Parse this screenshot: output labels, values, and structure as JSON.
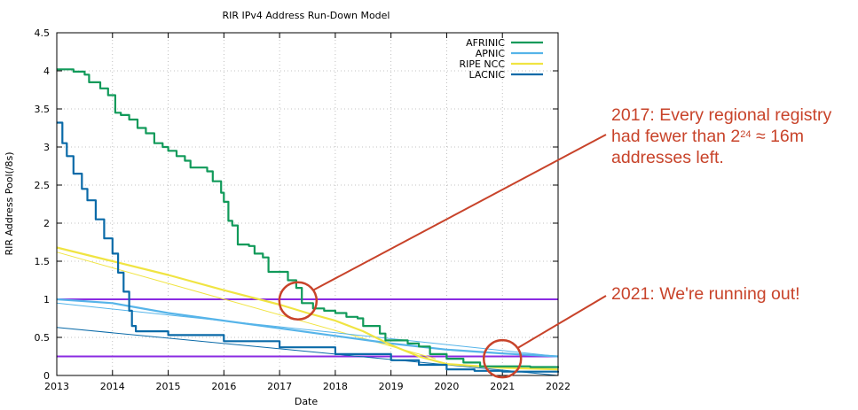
{
  "chart_data": {
    "type": "line",
    "title": "RIR IPv4 Address Run-Down Model",
    "xlabel": "Date",
    "ylabel": "RIR Address Pool(/8s)",
    "xlim": [
      2013,
      2022
    ],
    "ylim": [
      0,
      4.5
    ],
    "xticks": [
      "2013",
      "2014",
      "2015",
      "2016",
      "2017",
      "2018",
      "2019",
      "2020",
      "2021",
      "2022"
    ],
    "yticks": [
      "0",
      "0.5",
      "1",
      "1.5",
      "2",
      "2.5",
      "3",
      "3.5",
      "4",
      "4.5"
    ],
    "grid": true,
    "legend_position": "top-right",
    "series": [
      {
        "name": "AFRINIC",
        "color": "#119a5a",
        "points": [
          [
            2013,
            4.02
          ],
          [
            2013.3,
            3.99
          ],
          [
            2013.5,
            3.95
          ],
          [
            2013.58,
            3.85
          ],
          [
            2013.78,
            3.77
          ],
          [
            2013.92,
            3.68
          ],
          [
            2014.05,
            3.45
          ],
          [
            2014.15,
            3.42
          ],
          [
            2014.3,
            3.36
          ],
          [
            2014.45,
            3.25
          ],
          [
            2014.6,
            3.18
          ],
          [
            2014.75,
            3.05
          ],
          [
            2014.9,
            3.0
          ],
          [
            2015.0,
            2.95
          ],
          [
            2015.15,
            2.88
          ],
          [
            2015.3,
            2.82
          ],
          [
            2015.4,
            2.73
          ],
          [
            2015.7,
            2.68
          ],
          [
            2015.8,
            2.55
          ],
          [
            2015.95,
            2.4
          ],
          [
            2016.0,
            2.28
          ],
          [
            2016.08,
            2.03
          ],
          [
            2016.15,
            1.97
          ],
          [
            2016.25,
            1.72
          ],
          [
            2016.45,
            1.7
          ],
          [
            2016.55,
            1.6
          ],
          [
            2016.7,
            1.55
          ],
          [
            2016.8,
            1.36
          ],
          [
            2017.15,
            1.25
          ],
          [
            2017.3,
            1.15
          ],
          [
            2017.4,
            0.95
          ],
          [
            2017.6,
            0.88
          ],
          [
            2017.8,
            0.85
          ],
          [
            2018.0,
            0.82
          ],
          [
            2018.2,
            0.77
          ],
          [
            2018.4,
            0.75
          ],
          [
            2018.5,
            0.65
          ],
          [
            2018.8,
            0.55
          ],
          [
            2018.9,
            0.46
          ],
          [
            2019.3,
            0.42
          ],
          [
            2019.5,
            0.38
          ],
          [
            2019.7,
            0.28
          ],
          [
            2020.0,
            0.22
          ],
          [
            2020.3,
            0.17
          ],
          [
            2020.6,
            0.12
          ],
          [
            2021.0,
            0.12
          ],
          [
            2021.5,
            0.11
          ],
          [
            2022,
            0.1
          ]
        ]
      },
      {
        "name": "APNIC",
        "color": "#56b4e9",
        "points": [
          [
            2013,
            1.0
          ],
          [
            2014,
            0.95
          ],
          [
            2015,
            0.82
          ],
          [
            2016,
            0.72
          ],
          [
            2017,
            0.62
          ],
          [
            2018,
            0.52
          ],
          [
            2019,
            0.42
          ],
          [
            2020,
            0.34
          ],
          [
            2021,
            0.29
          ],
          [
            2022,
            0.25
          ]
        ]
      },
      {
        "name": "RIPE NCC",
        "color": "#f0e442",
        "points": [
          [
            2013,
            1.68
          ],
          [
            2014,
            1.5
          ],
          [
            2015,
            1.32
          ],
          [
            2016,
            1.12
          ],
          [
            2017,
            0.93
          ],
          [
            2017.5,
            0.82
          ],
          [
            2018,
            0.72
          ],
          [
            2018.5,
            0.58
          ],
          [
            2019,
            0.4
          ],
          [
            2019.5,
            0.25
          ],
          [
            2020,
            0.15
          ],
          [
            2021,
            0.1
          ],
          [
            2022,
            0.08
          ]
        ]
      },
      {
        "name": "LACNIC",
        "color": "#0a6aa8",
        "points": [
          [
            2013,
            3.32
          ],
          [
            2013.1,
            3.05
          ],
          [
            2013.18,
            2.88
          ],
          [
            2013.3,
            2.65
          ],
          [
            2013.45,
            2.45
          ],
          [
            2013.55,
            2.3
          ],
          [
            2013.7,
            2.05
          ],
          [
            2013.85,
            1.8
          ],
          [
            2014.0,
            1.6
          ],
          [
            2014.1,
            1.35
          ],
          [
            2014.2,
            1.1
          ],
          [
            2014.3,
            0.85
          ],
          [
            2014.35,
            0.65
          ],
          [
            2014.42,
            0.58
          ],
          [
            2015,
            0.53
          ],
          [
            2016,
            0.45
          ],
          [
            2017,
            0.37
          ],
          [
            2018,
            0.28
          ],
          [
            2019,
            0.2
          ],
          [
            2019.5,
            0.14
          ],
          [
            2020,
            0.08
          ],
          [
            2020.5,
            0.06
          ],
          [
            2021,
            0.05
          ],
          [
            2022,
            0.04
          ]
        ]
      }
    ],
    "model_lines": [
      {
        "color": "#f0e442",
        "points": [
          [
            2013,
            1.62
          ],
          [
            2019.8,
            0.22
          ]
        ]
      },
      {
        "color": "#56b4e9",
        "points": [
          [
            2013,
            0.95
          ],
          [
            2022,
            0.25
          ]
        ]
      },
      {
        "color": "#0a6aa8",
        "points": [
          [
            2013,
            0.63
          ],
          [
            2022,
            0.0
          ]
        ]
      }
    ],
    "thresholds": [
      {
        "value": 1.0,
        "color": "#8a2be2"
      },
      {
        "value": 0.25,
        "color": "#8a2be2"
      }
    ]
  },
  "annotations": {
    "a1": {
      "line1": "2017: Every regional registry",
      "line2_pre": "had fewer than 2",
      "line2_sup": "24",
      "line2_post": " ≈ 16m",
      "line3": "addresses left."
    },
    "a2": {
      "text": "2021: We're running out!"
    },
    "color": "#c8432a",
    "circle1": {
      "x": 2017.33,
      "y": 0.98
    },
    "circle2": {
      "x": 2021.0,
      "y": 0.22
    }
  }
}
